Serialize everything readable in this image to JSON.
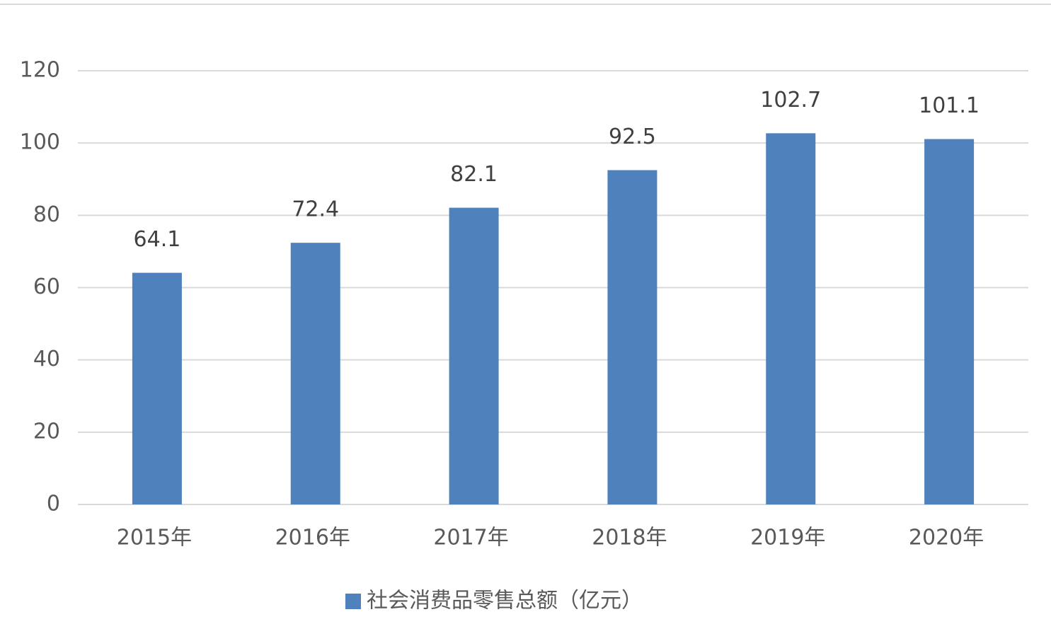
{
  "chart_data": {
    "type": "bar",
    "categories": [
      "2015年",
      "2016年",
      "2017年",
      "2018年",
      "2019年",
      "2020年"
    ],
    "series": [
      {
        "name": "社会消费品零售总额（亿元）",
        "color": "#4f81bd",
        "values": [
          64.1,
          72.4,
          82.1,
          92.5,
          102.7,
          101.1
        ]
      }
    ],
    "ylim": [
      0,
      120
    ],
    "yticks": [
      0,
      20,
      40,
      60,
      80,
      100,
      120
    ],
    "grid": true,
    "data_labels": true,
    "legend": "bottom"
  }
}
